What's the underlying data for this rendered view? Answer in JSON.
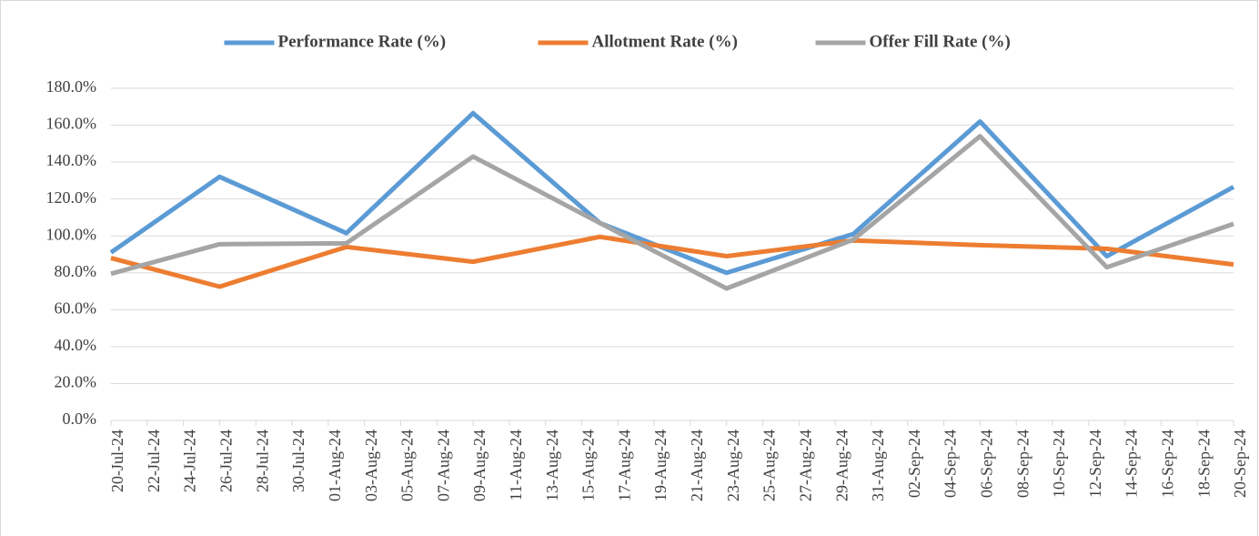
{
  "chart_data": {
    "type": "line",
    "x": [
      "20-Jul-24",
      "26-Jul-24",
      "02-Aug-24",
      "09-Aug-24",
      "16-Aug-24",
      "23-Aug-24",
      "30-Aug-24",
      "06-Sep-24",
      "13-Sep-24",
      "20-Sep-24"
    ],
    "series": [
      {
        "name": "Performance Rate (%)",
        "color": "#5b9bd5",
        "values": [
          91,
          132,
          101.5,
          166.5,
          107,
          80,
          101,
          162,
          89,
          126.5
        ]
      },
      {
        "name": "Allotment Rate (%)",
        "color": "#ed7d31",
        "values": [
          88,
          72.5,
          94,
          86,
          99.5,
          89,
          97.5,
          95,
          93,
          84.5
        ]
      },
      {
        "name": "Offer Fill Rate (%)",
        "color": "#a5a5a5",
        "values": [
          79.5,
          95.5,
          96,
          143,
          107,
          71.5,
          98,
          154,
          83,
          106.5
        ]
      }
    ],
    "xlim": [
      "20-Jul-24",
      "20-Sep-24"
    ],
    "xticks": [
      "20-Jul-24",
      "22-Jul-24",
      "24-Jul-24",
      "26-Jul-24",
      "28-Jul-24",
      "30-Jul-24",
      "01-Aug-24",
      "03-Aug-24",
      "05-Aug-24",
      "07-Aug-24",
      "09-Aug-24",
      "11-Aug-24",
      "13-Aug-24",
      "15-Aug-24",
      "17-Aug-24",
      "19-Aug-24",
      "21-Aug-24",
      "23-Aug-24",
      "25-Aug-24",
      "27-Aug-24",
      "29-Aug-24",
      "31-Aug-24",
      "02-Sep-24",
      "04-Sep-24",
      "06-Sep-24",
      "08-Sep-24",
      "10-Sep-24",
      "12-Sep-24",
      "14-Sep-24",
      "16-Sep-24",
      "18-Sep-24",
      "20-Sep-24"
    ],
    "ylim": [
      0,
      180
    ],
    "yticks": [
      {
        "value": 0,
        "label": "0.0%"
      },
      {
        "value": 20,
        "label": "20.0%"
      },
      {
        "value": 40,
        "label": "40.0%"
      },
      {
        "value": 60,
        "label": "60.0%"
      },
      {
        "value": 80,
        "label": "80.0%"
      },
      {
        "value": 100,
        "label": "100.0%"
      },
      {
        "value": 120,
        "label": "120.0%"
      },
      {
        "value": 140,
        "label": "140.0%"
      },
      {
        "value": 160,
        "label": "160.0%"
      },
      {
        "value": 180,
        "label": "180.0%"
      }
    ],
    "grid": true,
    "legend": "top"
  }
}
